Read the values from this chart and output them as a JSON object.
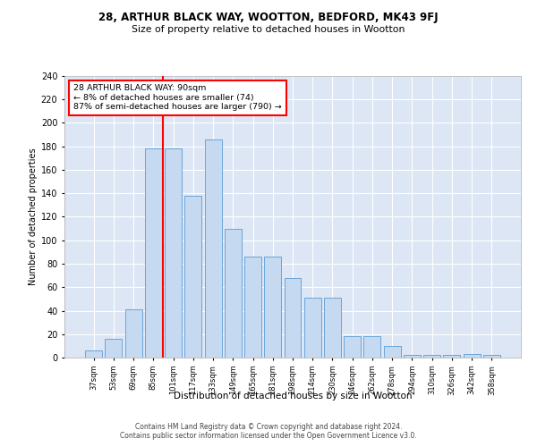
{
  "title1": "28, ARTHUR BLACK WAY, WOOTTON, BEDFORD, MK43 9FJ",
  "title2": "Size of property relative to detached houses in Wootton",
  "xlabel": "Distribution of detached houses by size in Wootton",
  "ylabel": "Number of detached properties",
  "categories": [
    "37sqm",
    "53sqm",
    "69sqm",
    "85sqm",
    "101sqm",
    "117sqm",
    "133sqm",
    "149sqm",
    "165sqm",
    "181sqm",
    "198sqm",
    "214sqm",
    "230sqm",
    "246sqm",
    "262sqm",
    "278sqm",
    "294sqm",
    "310sqm",
    "326sqm",
    "342sqm",
    "358sqm"
  ],
  "values": [
    6,
    16,
    41,
    178,
    178,
    138,
    186,
    110,
    86,
    86,
    68,
    51,
    51,
    18,
    18,
    10,
    2,
    2,
    2,
    3,
    2
  ],
  "bar_color": "#c5d9f0",
  "bar_edge_color": "#5b9bd5",
  "bg_color": "#dce6f5",
  "grid_color": "#ffffff",
  "ref_line_color": "red",
  "annotation_text": "28 ARTHUR BLACK WAY: 90sqm\n← 8% of detached houses are smaller (74)\n87% of semi-detached houses are larger (790) →",
  "ylim": [
    0,
    240
  ],
  "yticks": [
    0,
    20,
    40,
    60,
    80,
    100,
    120,
    140,
    160,
    180,
    200,
    220,
    240
  ],
  "footer": "Contains HM Land Registry data © Crown copyright and database right 2024.\nContains public sector information licensed under the Open Government Licence v3.0.",
  "ref_line_xindex": 3.5
}
